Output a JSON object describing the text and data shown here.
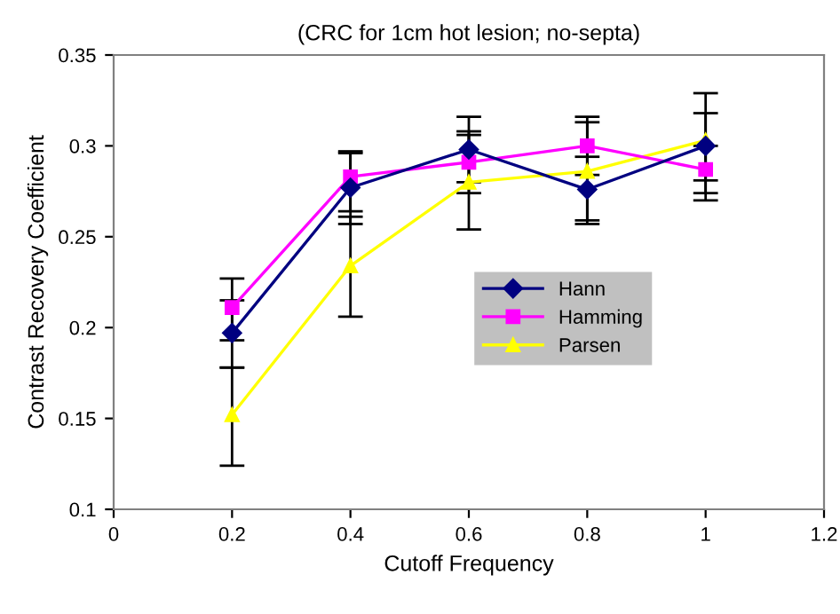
{
  "chart_data": {
    "type": "line",
    "title": "(CRC for 1cm hot lesion; no-septa)",
    "xlabel": "Cutoff Frequency",
    "ylabel": "Contrast Recovery Coefficient",
    "x": [
      0.2,
      0.4,
      0.6,
      0.8,
      1.0
    ],
    "series": [
      {
        "name": "Hann",
        "color": "#000080",
        "marker": "diamond",
        "values": [
          0.197,
          0.277,
          0.298,
          0.276,
          0.3
        ],
        "errors": [
          [
            0.178,
            0.215
          ],
          [
            0.257,
            0.296
          ],
          [
            0.28,
            0.316
          ],
          [
            0.257,
            0.294
          ],
          [
            0.27,
            0.329
          ]
        ]
      },
      {
        "name": "Hamming",
        "color": "#ff00ff",
        "marker": "square",
        "values": [
          0.211,
          0.283,
          0.291,
          0.3,
          0.287
        ],
        "errors": [
          [
            0.193,
            0.227
          ],
          [
            0.264,
            0.297
          ],
          [
            0.274,
            0.308
          ],
          [
            0.284,
            0.316
          ],
          [
            0.274,
            0.3
          ]
        ]
      },
      {
        "name": "Parsen",
        "color": "#ffff00",
        "marker": "triangle",
        "values": [
          0.152,
          0.234,
          0.28,
          0.286,
          0.303
        ],
        "errors": [
          [
            0.124,
            0.178
          ],
          [
            0.206,
            0.261
          ],
          [
            0.254,
            0.306
          ],
          [
            0.259,
            0.313
          ],
          [
            0.281,
            0.318
          ]
        ]
      }
    ],
    "xlim": [
      0,
      1.2
    ],
    "xticks": [
      0,
      0.2,
      0.4,
      0.6,
      0.8,
      1,
      1.2
    ],
    "ylim": [
      0.1,
      0.35
    ],
    "yticks": [
      0.1,
      0.15,
      0.2,
      0.25,
      0.3,
      0.35
    ],
    "grid": false,
    "legend": "right",
    "line_style": "solid"
  }
}
